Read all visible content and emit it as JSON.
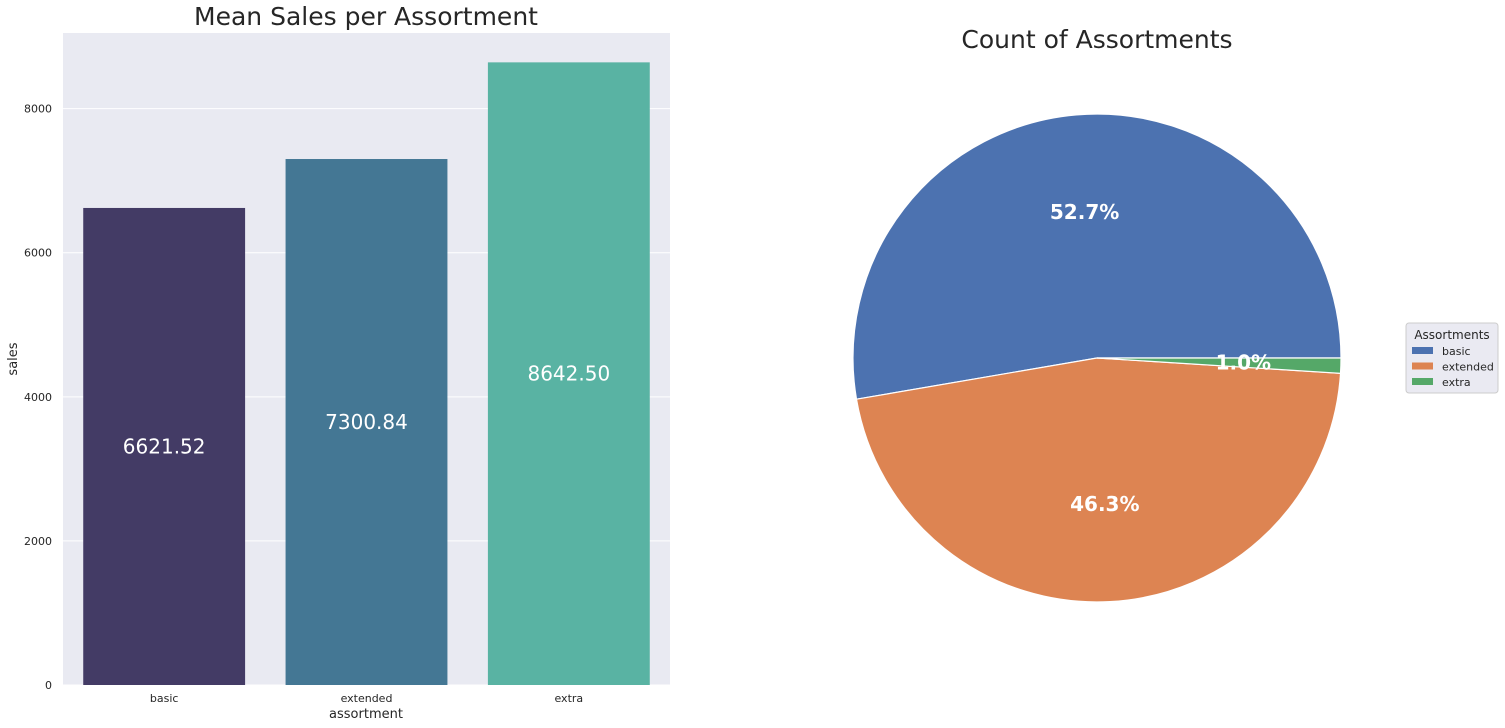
{
  "chart_data": [
    {
      "type": "bar",
      "title": "Mean Sales per Assortment",
      "xlabel": "assortment",
      "ylabel": "sales",
      "categories": [
        "basic",
        "extended",
        "extra"
      ],
      "values": [
        6621.52,
        7300.84,
        8642.5
      ],
      "value_labels": [
        "6621.52",
        "7300.84",
        "8642.50"
      ],
      "colors": [
        "#433b65",
        "#447794",
        "#59b3a3"
      ],
      "ylim": [
        0,
        9050
      ],
      "yticks": [
        0,
        2000,
        4000,
        6000,
        8000
      ],
      "ytick_labels": [
        "0",
        "2000",
        "4000",
        "6000",
        "8000"
      ],
      "grid": true,
      "background": "#e9eaf2"
    },
    {
      "type": "pie",
      "title": "Count of Assortments",
      "categories": [
        "basic",
        "extended",
        "extra"
      ],
      "values": [
        52.7,
        46.3,
        1.0
      ],
      "pct_labels": [
        "52.7%",
        "46.3%",
        "1.0%"
      ],
      "colors": [
        "#4c72b0",
        "#dd8452",
        "#55a868"
      ],
      "legend": {
        "title": "Assortments",
        "entries": [
          "basic",
          "extended",
          "extra"
        ],
        "placement": "center-right"
      }
    }
  ]
}
